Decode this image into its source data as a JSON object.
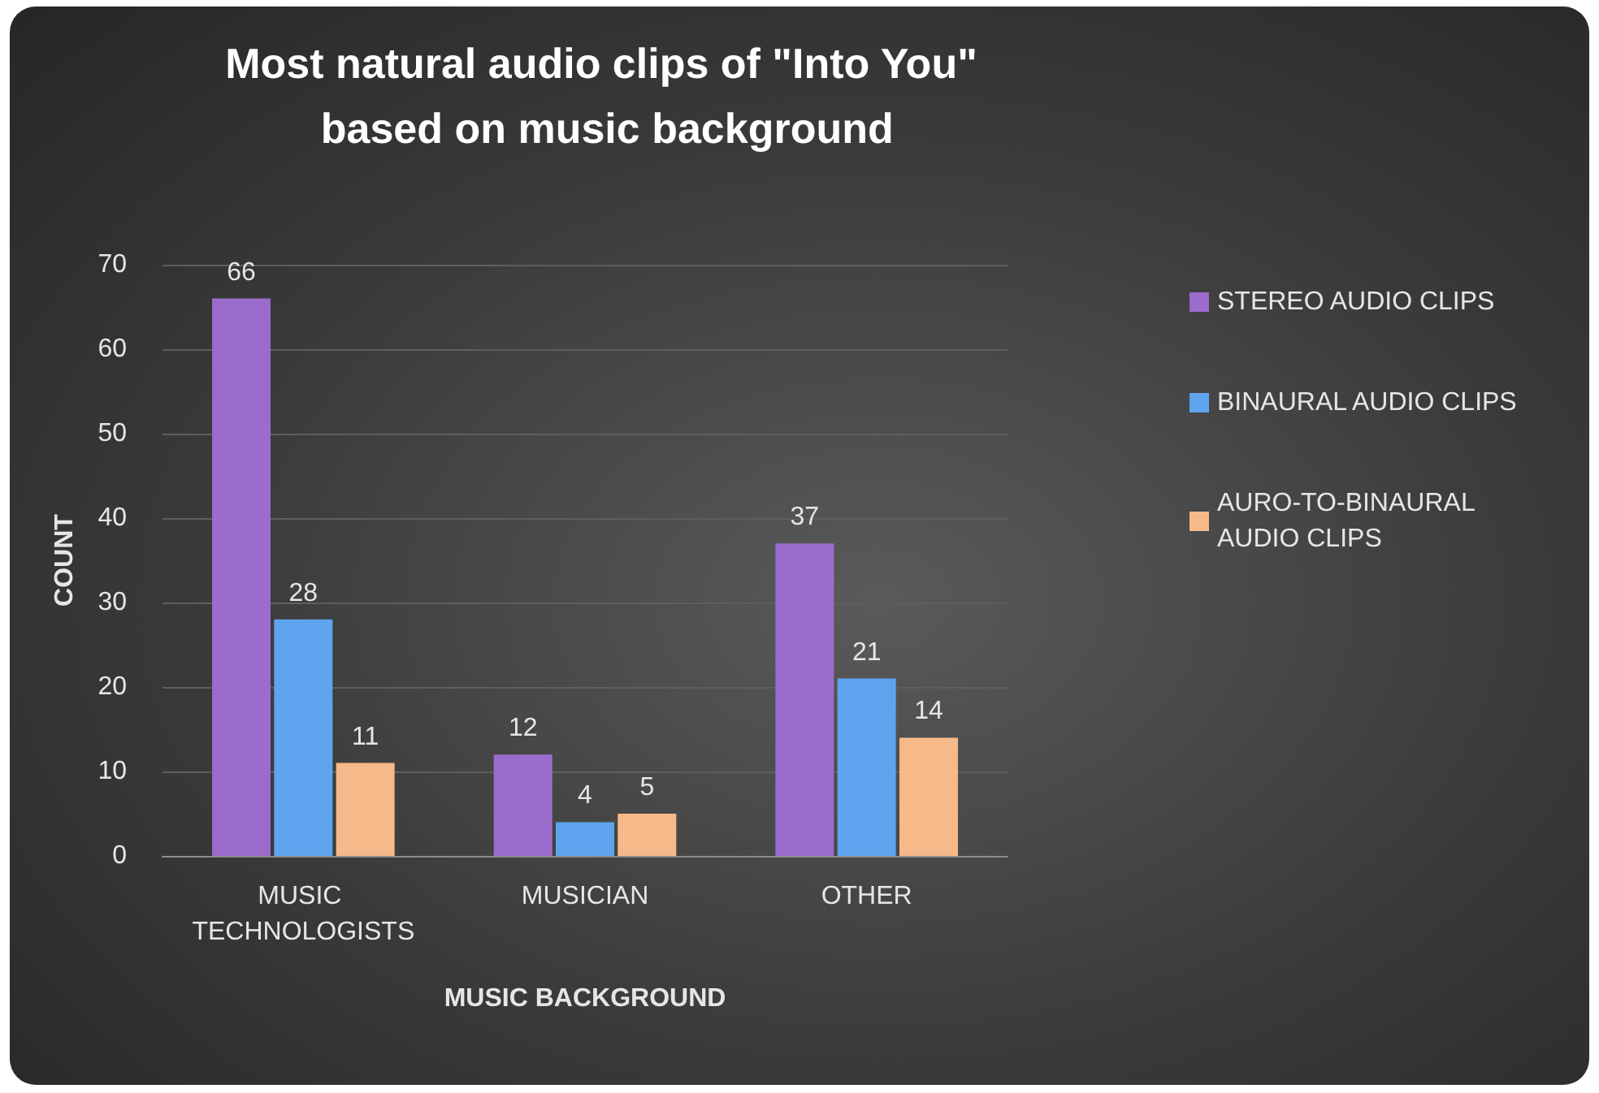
{
  "chart_data": {
    "type": "bar",
    "title": "Most natural audio clips of \"Into You\" based on music background",
    "xlabel": "MUSIC BACKGROUND",
    "ylabel": "COUNT",
    "categories": [
      "MUSIC TECHNOLOGISTS",
      "MUSICIAN",
      "OTHER"
    ],
    "series": [
      {
        "name": "STEREO AUDIO CLIPS",
        "color": "#9b6ccc",
        "values": [
          66,
          12,
          37
        ]
      },
      {
        "name": "BINAURAL AUDIO CLIPS",
        "color": "#5ea4ee",
        "values": [
          28,
          4,
          21
        ]
      },
      {
        "name": "AURO-TO-BINAURAL AUDIO CLIPS",
        "color": "#f6b98a",
        "values": [
          11,
          5,
          14
        ]
      }
    ],
    "ylim": [
      0,
      70
    ],
    "yticks": [
      0,
      10,
      20,
      30,
      40,
      50,
      60,
      70
    ],
    "grid": "y",
    "legend": "right",
    "data_labels": true
  }
}
